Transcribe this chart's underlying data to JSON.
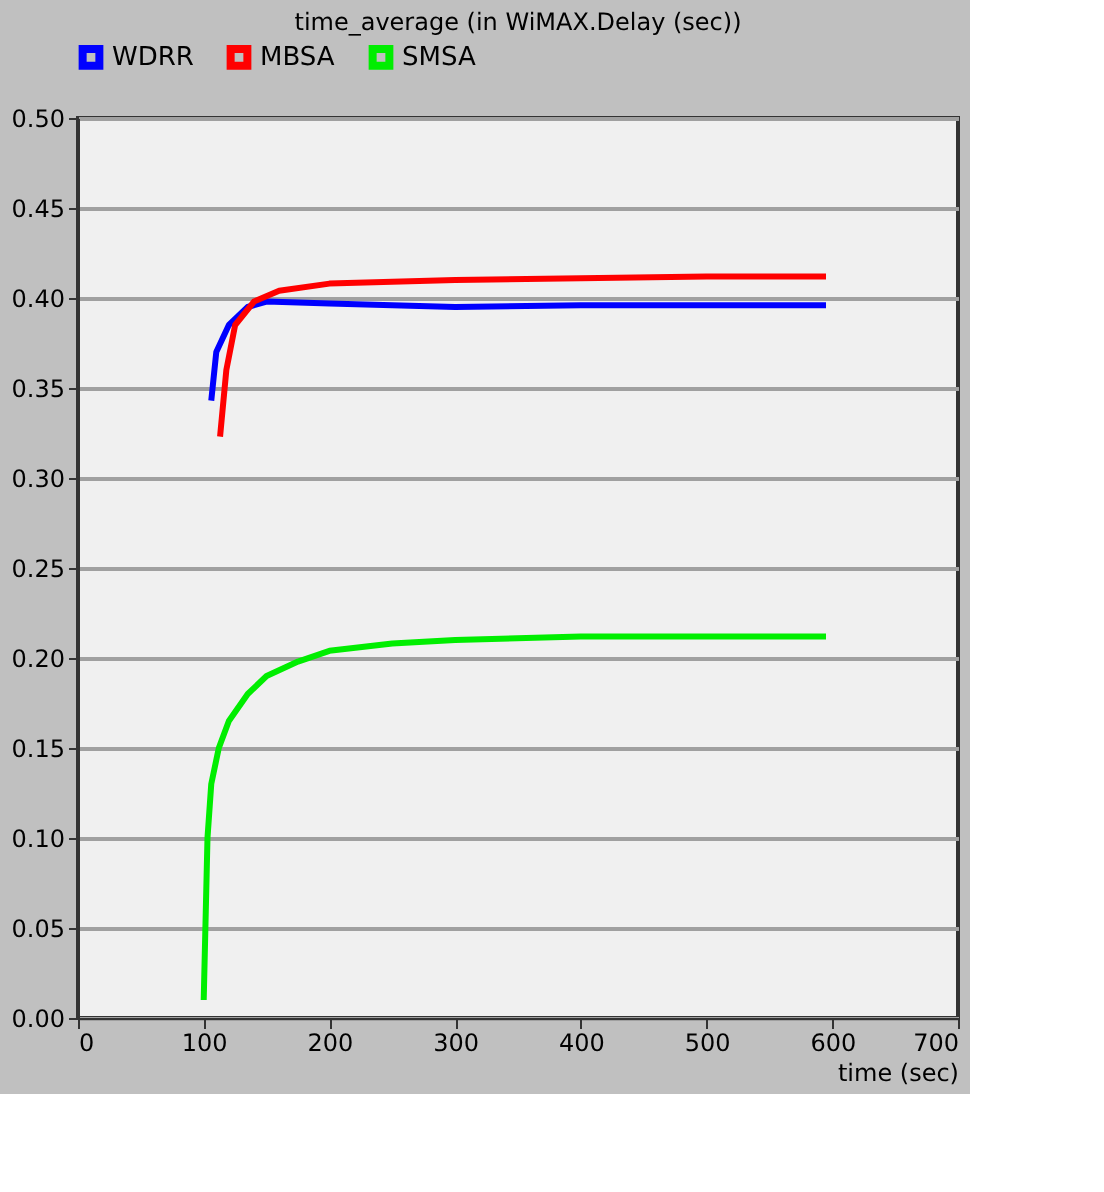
{
  "chart_data": {
    "type": "line",
    "title": "time_average (in WiMAX.Delay (sec))",
    "xlabel": "time (sec)",
    "xlim": [
      0,
      700
    ],
    "xticks": [
      0,
      100,
      200,
      300,
      400,
      500,
      600,
      700
    ],
    "ylim": [
      0,
      0.5
    ],
    "yticks": [
      {
        "value": 0,
        "label": "0.00"
      },
      0.05,
      {
        "value": 0.1,
        "label": "0.10"
      },
      0.15,
      {
        "value": 0.2,
        "label": "0.20"
      },
      0.25,
      {
        "value": 0.3,
        "label": "0.30"
      },
      0.35,
      {
        "value": 0.4,
        "label": "0.40"
      },
      0.45,
      {
        "value": 0.5,
        "label": "0.50"
      }
    ],
    "grid": "y",
    "legend": "top",
    "marker": "none",
    "line_style": "solid",
    "series": [
      {
        "name": "WDRR",
        "color": "#0000ff",
        "x": [
          106,
          110,
          120,
          135,
          150,
          200,
          300,
          400,
          500,
          595
        ],
        "values": [
          0.343,
          0.37,
          0.385,
          0.395,
          0.398,
          0.397,
          0.395,
          0.396,
          0.396,
          0.396
        ]
      },
      {
        "name": "MBSA",
        "color": "#ff0000",
        "x": [
          113,
          118,
          125,
          140,
          160,
          200,
          300,
          400,
          500,
          595
        ],
        "values": [
          0.323,
          0.36,
          0.385,
          0.398,
          0.404,
          0.408,
          0.41,
          0.411,
          0.412,
          0.412
        ]
      },
      {
        "name": "SMSA",
        "color": "#00ee00",
        "x": [
          100,
          103,
          106,
          112,
          120,
          135,
          150,
          175,
          200,
          250,
          300,
          400,
          500,
          595
        ],
        "values": [
          0.01,
          0.1,
          0.13,
          0.15,
          0.165,
          0.18,
          0.19,
          0.198,
          0.204,
          0.208,
          0.21,
          0.212,
          0.212,
          0.212
        ]
      }
    ]
  }
}
